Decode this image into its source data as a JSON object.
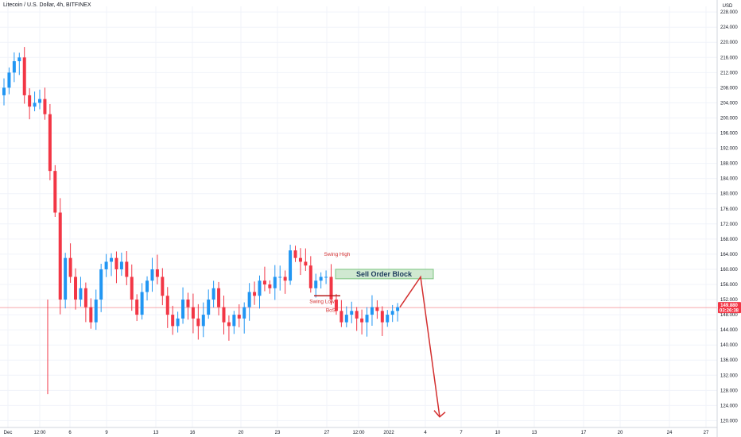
{
  "header": {
    "symbol_title": "Litecoin / U.S. Dollar, 4h, BITFINEX",
    "currency": "USD"
  },
  "price_tag": {
    "price": "149.880",
    "countdown": "03:26:38"
  },
  "annotations": {
    "swing_high": "Swing High",
    "swing_low": "Swing Low",
    "bos": "BoS",
    "order_block": "Sell Order Block"
  },
  "colors": {
    "up": "#2196f3",
    "down": "#f23645",
    "grid": "#f0f3fa",
    "annotation": "#d32f2f",
    "order_block_fill": "#c8e6c9",
    "order_block_border": "#66bb6a",
    "price_line": "#f7a6ab"
  },
  "chart_data": {
    "type": "candlestick",
    "title": "Litecoin / U.S. Dollar, 4h, BITFINEX",
    "ylabel": "USD",
    "ylim": [
      118,
      230
    ],
    "y_ticks": [
      120,
      124,
      128,
      132,
      136,
      140,
      144,
      148,
      152,
      156,
      160,
      164,
      168,
      172,
      176,
      180,
      184,
      188,
      192,
      196,
      200,
      204,
      208,
      212,
      216,
      220,
      224,
      228
    ],
    "x_tick_labels": [
      "Dec",
      "12:00",
      "6",
      "9",
      "13",
      "16",
      "20",
      "23",
      "27",
      "12:00",
      "2022",
      "4",
      "7",
      "10",
      "13",
      "17",
      "20",
      "24",
      "27"
    ],
    "grid": true,
    "last_price": 149.88,
    "close_path": [
      208,
      212,
      215,
      216,
      206,
      203,
      204,
      205,
      201,
      186,
      175,
      152,
      163,
      158,
      152,
      155,
      150,
      146,
      152,
      160,
      162,
      163,
      160,
      162,
      158,
      152,
      148,
      154,
      157,
      160,
      158,
      153,
      148,
      145,
      147,
      152,
      150,
      147,
      145,
      148,
      152,
      155,
      150,
      146,
      145,
      148,
      147,
      150,
      154,
      153,
      157,
      156,
      155,
      158,
      158,
      157,
      165,
      163,
      162,
      161,
      155,
      157,
      158,
      158,
      152,
      149,
      146,
      148,
      149,
      147,
      146,
      148,
      150,
      149,
      146,
      148,
      149,
      150
    ],
    "swing_high": 164,
    "swing_low": 153,
    "order_block": [
      157.5,
      160
    ],
    "projection": [
      150,
      158,
      121
    ]
  }
}
